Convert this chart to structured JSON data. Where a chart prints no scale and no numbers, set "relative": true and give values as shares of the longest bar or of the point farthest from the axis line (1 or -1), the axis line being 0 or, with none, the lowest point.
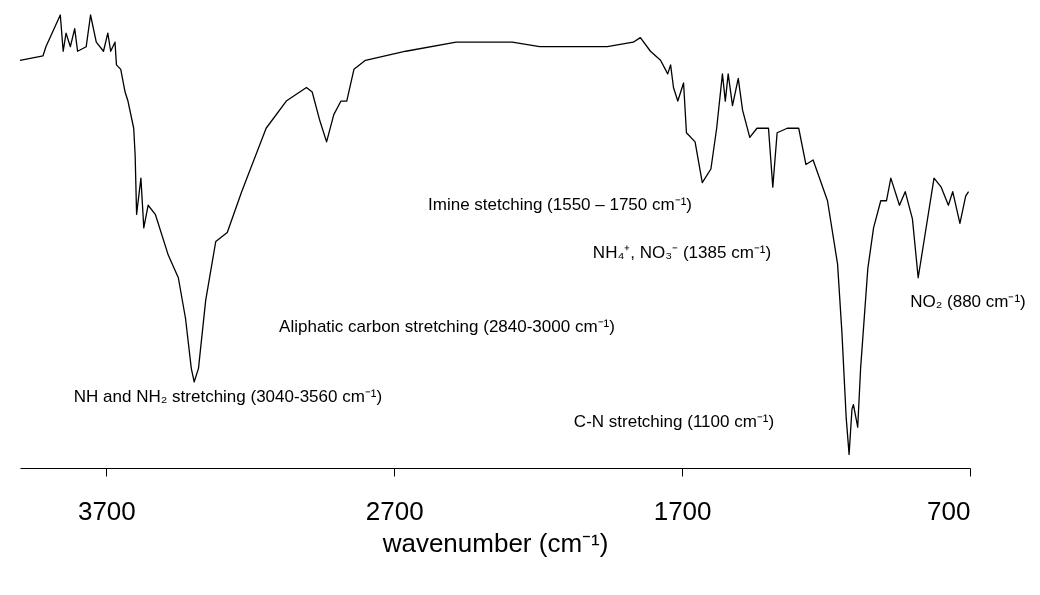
{
  "chart_data": {
    "type": "line",
    "xlabel": "wavenumber (cm⁻¹)",
    "relative": true,
    "color": "#000000",
    "xlim": [
      4000,
      700
    ],
    "xticks": [
      3700,
      2700,
      1700,
      700
    ],
    "x": [
      4000,
      3920,
      3910,
      3860,
      3850,
      3840,
      3825,
      3810,
      3800,
      3770,
      3755,
      3735,
      3710,
      3695,
      3685,
      3670,
      3665,
      3650,
      3635,
      3625,
      3605,
      3600,
      3595,
      3580,
      3570,
      3555,
      3530,
      3485,
      3450,
      3425,
      3405,
      3395,
      3380,
      3355,
      3320,
      3280,
      3230,
      3145,
      3075,
      3005,
      2985,
      2960,
      2935,
      2910,
      2885,
      2865,
      2840,
      2800,
      2660,
      2485,
      2290,
      2195,
      1960,
      1870,
      1845,
      1810,
      1775,
      1750,
      1740,
      1730,
      1715,
      1695,
      1685,
      1655,
      1630,
      1600,
      1580,
      1560,
      1550,
      1540,
      1525,
      1505,
      1490,
      1465,
      1440,
      1400,
      1385,
      1370,
      1335,
      1295,
      1270,
      1245,
      1195,
      1160,
      1145,
      1130,
      1120,
      1110,
      1105,
      1090,
      1080,
      1055,
      1035,
      1010,
      990,
      975,
      945,
      925,
      900,
      880,
      860,
      825,
      800,
      775,
      760,
      735,
      715,
      705
    ],
    "values": [
      0.9,
      0.91,
      0.93,
      1.0,
      0.92,
      0.96,
      0.93,
      0.97,
      0.92,
      0.93,
      1.0,
      0.94,
      0.92,
      0.96,
      0.92,
      0.94,
      0.89,
      0.88,
      0.83,
      0.81,
      0.75,
      0.69,
      0.56,
      0.64,
      0.53,
      0.58,
      0.56,
      0.47,
      0.42,
      0.33,
      0.22,
      0.19,
      0.22,
      0.37,
      0.5,
      0.52,
      0.61,
      0.75,
      0.81,
      0.84,
      0.83,
      0.77,
      0.72,
      0.78,
      0.81,
      0.81,
      0.88,
      0.9,
      0.92,
      0.94,
      0.94,
      0.93,
      0.93,
      0.94,
      0.95,
      0.92,
      0.9,
      0.87,
      0.89,
      0.84,
      0.81,
      0.85,
      0.74,
      0.72,
      0.63,
      0.66,
      0.75,
      0.87,
      0.81,
      0.87,
      0.8,
      0.86,
      0.79,
      0.73,
      0.75,
      0.75,
      0.62,
      0.74,
      0.75,
      0.75,
      0.67,
      0.68,
      0.59,
      0.45,
      0.3,
      0.11,
      0.03,
      0.13,
      0.14,
      0.09,
      0.22,
      0.44,
      0.53,
      0.59,
      0.59,
      0.64,
      0.58,
      0.61,
      0.55,
      0.42,
      0.5,
      0.64,
      0.62,
      0.58,
      0.61,
      0.54,
      0.6,
      0.61
    ],
    "annotations": [
      "NH and NH₂ stretching (3040-3560 cm⁻¹)",
      "Aliphatic carbon stretching (2840-3000 cm⁻¹)",
      "Imine stetching (1550 – 1750 cm⁻¹)",
      "NH₄⁺, NO₃⁻ (1385 cm⁻¹)",
      "NO₂ (880 cm⁻¹)",
      "C-N stretching (1100 cm⁻¹)"
    ]
  }
}
